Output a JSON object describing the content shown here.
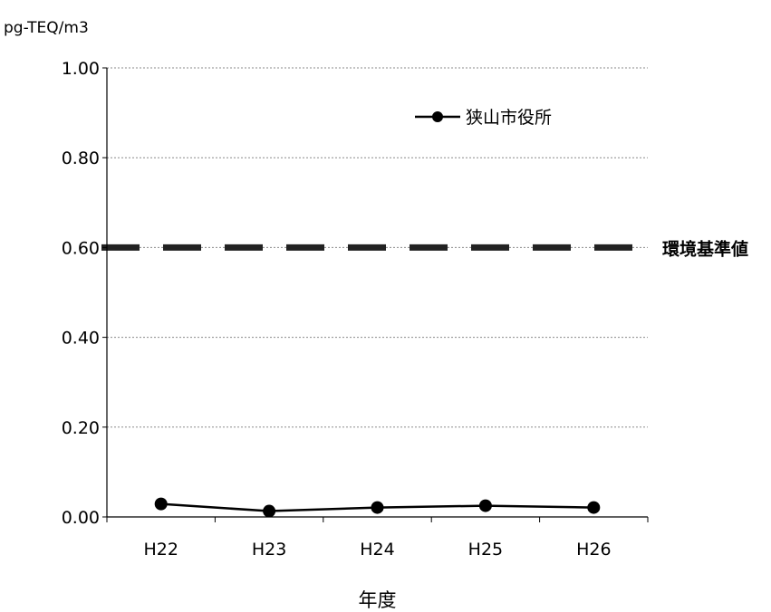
{
  "chart_data": {
    "type": "line",
    "unit_label": "pg-TEQ/m3",
    "xlabel": "年度",
    "categories": [
      "H22",
      "H23",
      "H24",
      "H25",
      "H26"
    ],
    "series": [
      {
        "name": "狭山市役所",
        "values": [
          0.029,
          0.013,
          0.021,
          0.025,
          0.021
        ],
        "color": "#000000"
      }
    ],
    "reference_line": {
      "label": "環境基準値",
      "value": 0.6,
      "style": "dashed",
      "color": "#222222"
    },
    "ylim": [
      0,
      1.0
    ],
    "yticks": [
      "0.00",
      "0.20",
      "0.40",
      "0.60",
      "0.80",
      "1.00"
    ],
    "grid": true,
    "legend_position": "top-right"
  }
}
